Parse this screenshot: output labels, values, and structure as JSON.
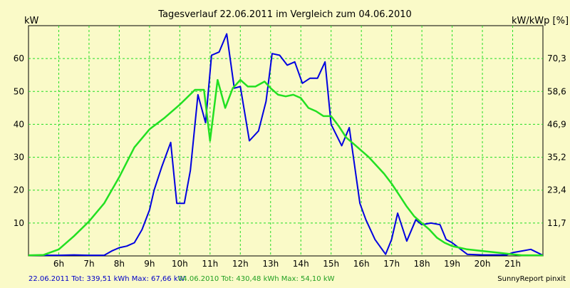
{
  "chart_data": {
    "type": "line",
    "title": "Tagesverlauf 22.06.2011 im Vergleich zum 04.06.2010",
    "ylabel_left": "kW",
    "ylabel_right": "kW/kWp [%]",
    "x_range_hours": [
      5.0,
      22.0
    ],
    "x_ticks": [
      "6h",
      "7h",
      "8h",
      "9h",
      "10h",
      "11h",
      "12h",
      "13h",
      "14h",
      "15h",
      "16h",
      "17h",
      "18h",
      "19h",
      "20h",
      "21h"
    ],
    "y_left_range": [
      0,
      70
    ],
    "y_left_ticks": [
      "10",
      "20",
      "30",
      "40",
      "50",
      "60"
    ],
    "y_right_ticks": [
      "11,7",
      "23,4",
      "35,2",
      "46,9",
      "58,6",
      "70,3"
    ],
    "grid": true,
    "series": [
      {
        "name": "22.06.2011",
        "color": "#0000e0",
        "x": [
          5.0,
          5.5,
          6.0,
          6.5,
          7.0,
          7.5,
          7.75,
          8.0,
          8.25,
          8.5,
          8.75,
          9.0,
          9.15,
          9.4,
          9.7,
          9.9,
          10.15,
          10.35,
          10.6,
          10.85,
          11.05,
          11.3,
          11.55,
          11.8,
          12.0,
          12.3,
          12.6,
          12.85,
          13.05,
          13.3,
          13.55,
          13.8,
          14.05,
          14.3,
          14.55,
          14.8,
          15.0,
          15.35,
          15.6,
          15.95,
          16.15,
          16.45,
          16.8,
          17.0,
          17.2,
          17.5,
          17.8,
          18.0,
          18.3,
          18.6,
          18.8,
          19.0,
          19.5,
          20.0,
          20.5,
          20.8,
          21.0,
          21.3,
          21.6,
          22.0
        ],
        "y": [
          0.2,
          0.2,
          0.2,
          0.3,
          0.2,
          0.2,
          1.5,
          2.5,
          3.0,
          4.0,
          8.0,
          14.0,
          20.0,
          27.0,
          34.5,
          16.0,
          16.0,
          26.0,
          49.0,
          40.5,
          61.0,
          62.0,
          67.5,
          51.0,
          51.5,
          35.0,
          38.0,
          47.0,
          61.5,
          61.0,
          58.0,
          59.0,
          52.5,
          54.0,
          54.0,
          59.0,
          40.0,
          33.5,
          39.0,
          16.0,
          11.0,
          5.0,
          0.5,
          5.0,
          13.0,
          4.5,
          11.0,
          9.5,
          10.0,
          9.5,
          5.0,
          4.0,
          0.5,
          0.3,
          0.3,
          0.3,
          1.0,
          1.5,
          2.0,
          0.2
        ]
      },
      {
        "name": "04.06.2010",
        "color": "#22e022",
        "x": [
          5.0,
          5.5,
          6.0,
          6.5,
          7.0,
          7.5,
          8.0,
          8.5,
          9.0,
          9.5,
          10.0,
          10.5,
          10.8,
          11.0,
          11.25,
          11.5,
          11.75,
          12.0,
          12.25,
          12.5,
          12.8,
          13.0,
          13.25,
          13.5,
          13.75,
          14.0,
          14.25,
          14.5,
          14.75,
          15.0,
          15.25,
          15.5,
          15.75,
          16.0,
          16.25,
          16.5,
          16.75,
          17.0,
          17.25,
          17.5,
          17.75,
          18.0,
          18.25,
          18.5,
          18.75,
          19.0,
          19.5,
          20.0,
          20.5,
          21.0,
          21.3,
          21.6,
          22.0
        ],
        "y": [
          0.2,
          0.3,
          2.0,
          6.0,
          10.5,
          16.0,
          24.0,
          33.0,
          38.5,
          42.0,
          46.0,
          50.5,
          50.5,
          35.0,
          53.5,
          45.0,
          51.0,
          53.5,
          51.5,
          51.5,
          53.0,
          51.0,
          49.0,
          48.5,
          49.0,
          48.0,
          45.0,
          44.0,
          42.5,
          42.5,
          39.5,
          36.0,
          34.0,
          32.0,
          30.0,
          27.5,
          25.0,
          22.0,
          18.5,
          15.0,
          12.0,
          10.0,
          8.0,
          5.5,
          4.0,
          3.0,
          2.0,
          1.5,
          1.0,
          0.5,
          0.2,
          0.2,
          0.2
        ]
      }
    ]
  },
  "footer": {
    "series1_info": "22.06.2011 Tot: 339,51 kWh Max: 67,66 kW",
    "series2_info": "04.06.2010 Tot: 430,48 kWh Max: 54,10 kW",
    "brand": "SunnyReport pinxit"
  }
}
